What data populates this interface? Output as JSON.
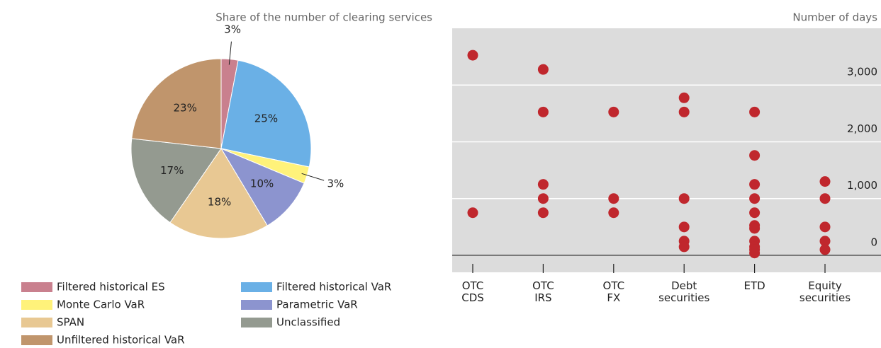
{
  "chart_data": [
    {
      "type": "pie",
      "subtitle": "Share of the number of clearing services",
      "categories": [
        "Filtered historical ES",
        "Filtered historical VaR",
        "Monte Carlo VaR",
        "Parametric VaR",
        "SPAN",
        "Unclassified",
        "Unfiltered historical VaR"
      ],
      "values": [
        3,
        25,
        3,
        10,
        18,
        17,
        23
      ],
      "value_labels": [
        "3%",
        "25%",
        "3%",
        "10%",
        "18%",
        "17%",
        "23%"
      ],
      "colors": [
        "#c9808e",
        "#6ab0e6",
        "#fff27a",
        "#8c94cf",
        "#e8c893",
        "#949a90",
        "#c0956c"
      ]
    },
    {
      "type": "strip",
      "y_label": "Number of days",
      "categories": [
        [
          "OTC",
          "CDS"
        ],
        [
          "OTC",
          "IRS"
        ],
        [
          "OTC",
          "FX"
        ],
        [
          "Debt",
          "securities"
        ],
        [
          "ETD"
        ],
        [
          "Equity",
          "securities"
        ]
      ],
      "values": [
        [
          3525,
          750
        ],
        [
          3275,
          2525,
          1250,
          1000,
          750
        ],
        [
          2525,
          1000,
          750
        ],
        [
          2775,
          2525,
          1000,
          500,
          250,
          150
        ],
        [
          2525,
          1760,
          1250,
          1000,
          750,
          525,
          475,
          250,
          150,
          100,
          40
        ],
        [
          1300,
          1000,
          500,
          250,
          100
        ]
      ],
      "color": "#c0272d",
      "ylim": [
        -300,
        4000
      ],
      "yticks": [
        0,
        {
          "value": 1000,
          "label": "1,000"
        },
        {
          "value": 2000,
          "label": "2,000"
        },
        {
          "value": 3000,
          "label": "3,000"
        }
      ],
      "grid": true
    }
  ]
}
